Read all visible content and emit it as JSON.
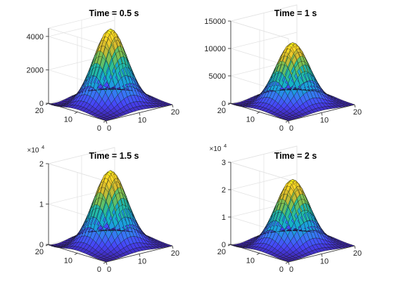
{
  "chart_data": [
    {
      "type": "surface",
      "title": "Time = 0.5 s",
      "peak": 4500,
      "x_ticks": [
        "0",
        "10",
        "20"
      ],
      "y_ticks": [
        "0",
        "10",
        "20"
      ],
      "z_ticks": [
        {
          "value": 0,
          "label": "0"
        },
        {
          "value": 2000,
          "label": "2000"
        },
        {
          "value": 4000,
          "label": "4000"
        }
      ],
      "zlim": [
        0,
        4500
      ],
      "multiplier": "",
      "exponent": ""
    },
    {
      "type": "surface",
      "title": "Time = 1 s",
      "peak": 11200,
      "x_ticks": [
        "0",
        "10",
        "20"
      ],
      "y_ticks": [
        "0",
        "10",
        "20"
      ],
      "z_ticks": [
        {
          "value": 0,
          "label": "0"
        },
        {
          "value": 5000,
          "label": "5000"
        },
        {
          "value": 10000,
          "label": "10000"
        },
        {
          "value": 15000,
          "label": "15000"
        }
      ],
      "zlim": [
        0,
        15000
      ],
      "multiplier": "",
      "exponent": ""
    },
    {
      "type": "surface",
      "title": "Time = 1.5 s",
      "peak": 1.85,
      "x_ticks": [
        "0",
        "10",
        "20"
      ],
      "y_ticks": [
        "0",
        "10",
        "20"
      ],
      "z_ticks": [
        {
          "value": 0,
          "label": "0"
        },
        {
          "value": 1,
          "label": "1"
        },
        {
          "value": 2,
          "label": "2"
        }
      ],
      "zlim": [
        0,
        2
      ],
      "multiplier": "×10",
      "exponent": "4"
    },
    {
      "type": "surface",
      "title": "Time = 2 s",
      "peak": 2.4,
      "x_ticks": [
        "0",
        "10",
        "20"
      ],
      "y_ticks": [
        "0",
        "10",
        "20"
      ],
      "z_ticks": [
        {
          "value": 0,
          "label": "0"
        },
        {
          "value": 1,
          "label": "1"
        },
        {
          "value": 2,
          "label": "2"
        },
        {
          "value": 3,
          "label": "3"
        }
      ],
      "zlim": [
        0,
        3
      ],
      "multiplier": "×10",
      "exponent": "4"
    }
  ],
  "colormap": [
    "#3e26a8",
    "#4743f8",
    "#3a73f7",
    "#1e9ae0",
    "#14b4c4",
    "#33c08a",
    "#8ac04a",
    "#d4ba2e",
    "#fdd427",
    "#f9fb15"
  ]
}
